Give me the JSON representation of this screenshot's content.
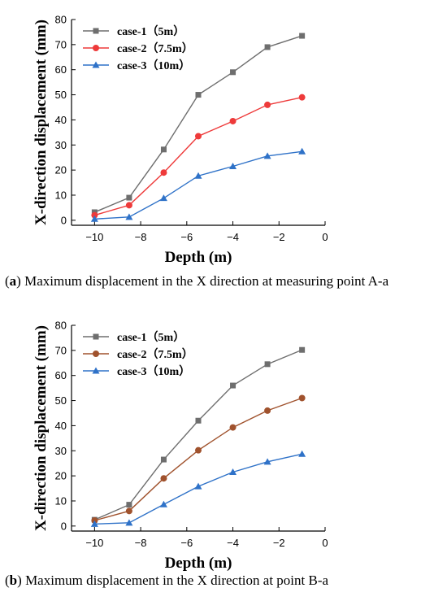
{
  "chart_data": [
    {
      "type": "line",
      "panel_label": "a",
      "caption": "Maximum displacement in the X direction at measuring point A-a",
      "xlabel": "Depth (m)",
      "ylabel": "X-direction displacement (mm)",
      "xlim": [
        -11,
        0
      ],
      "ylim": [
        -2,
        80
      ],
      "xticks": [
        -10,
        -8,
        -6,
        -4,
        -2,
        0
      ],
      "yticks": [
        0,
        10,
        20,
        30,
        40,
        50,
        60,
        70,
        80
      ],
      "x": [
        -10,
        -8.5,
        -7,
        -5.5,
        -4,
        -2.5,
        -1
      ],
      "legend_position": "top-left",
      "series": [
        {
          "name": "case-1（5m）",
          "marker": "square",
          "color": "#6e6e6e",
          "values": [
            3.2,
            9,
            28.2,
            50,
            59,
            69,
            73.5
          ]
        },
        {
          "name": "case-2（7.5m）",
          "marker": "circle",
          "color": "#ee3a3a",
          "values": [
            2,
            6,
            19,
            33.5,
            39.5,
            46,
            49
          ]
        },
        {
          "name": "case-3（10m）",
          "marker": "triangle",
          "color": "#2f72c8",
          "values": [
            0.5,
            1.3,
            8.8,
            17.7,
            21.5,
            25.6,
            27.4
          ]
        }
      ]
    },
    {
      "type": "line",
      "panel_label": "b",
      "caption": "Maximum displacement in the X direction at point B-a",
      "xlabel": "Depth (m)",
      "ylabel": "X-direction displacement (mm)",
      "xlim": [
        -11,
        0
      ],
      "ylim": [
        -2,
        80
      ],
      "xticks": [
        -10,
        -8,
        -6,
        -4,
        -2,
        0
      ],
      "yticks": [
        0,
        10,
        20,
        30,
        40,
        50,
        60,
        70,
        80
      ],
      "x": [
        -10,
        -8.5,
        -7,
        -5.5,
        -4,
        -2.5,
        -1
      ],
      "legend_position": "top-left",
      "series": [
        {
          "name": "case-1（5m）",
          "marker": "square",
          "color": "#6e6e6e",
          "values": [
            2.5,
            8.5,
            26.5,
            42,
            56,
            64.5,
            70.2
          ]
        },
        {
          "name": "case-2（7.5m）",
          "marker": "circle",
          "color": "#a0522d",
          "values": [
            2.2,
            6,
            19,
            30.2,
            39.3,
            46,
            51
          ]
        },
        {
          "name": "case-3（10m）",
          "marker": "triangle",
          "color": "#2f72c8",
          "values": [
            0.8,
            1.3,
            8.6,
            15.8,
            21.5,
            25.6,
            28.7
          ]
        }
      ]
    }
  ]
}
